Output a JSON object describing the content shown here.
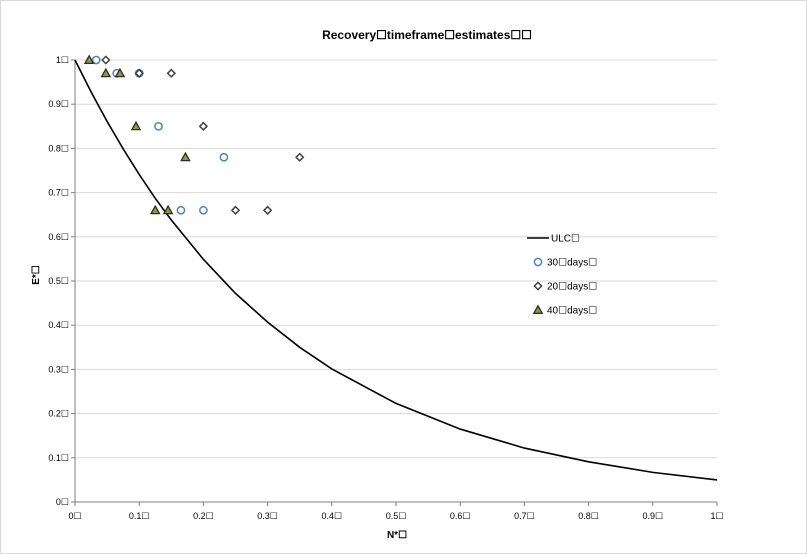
{
  "chart_data": {
    "type": "scatter",
    "title": "Recovery☐timeframe☐estimates☐☐",
    "xlabel": "N*☐",
    "ylabel": "E*☐",
    "xlim": [
      0,
      1
    ],
    "ylim": [
      0,
      1
    ],
    "grid": "horizontal",
    "legend_position": "right",
    "x_ticks": [
      "0☐",
      "0.1☐",
      "0.2☐",
      "0.3☐",
      "0.4☐",
      "0.5☐",
      "0.6☐",
      "0.7☐",
      "0.8☐",
      "0.9☐",
      "1☐"
    ],
    "y_ticks": [
      "0☐",
      "0.1☐",
      "0.2☐",
      "0.3☐",
      "0.4☐",
      "0.5☐",
      "0.6☐",
      "0.7☐",
      "0.8☐",
      "0.9☐",
      "1☐"
    ],
    "series": [
      {
        "name": "ULC☐",
        "kind": "line",
        "color": "#000000",
        "x": [
          0,
          0.025,
          0.05,
          0.075,
          0.1,
          0.125,
          0.15,
          0.2,
          0.25,
          0.3,
          0.35,
          0.4,
          0.5,
          0.6,
          0.7,
          0.8,
          0.9,
          1.0
        ],
        "y": [
          1.0,
          0.928,
          0.861,
          0.799,
          0.741,
          0.687,
          0.638,
          0.549,
          0.472,
          0.407,
          0.35,
          0.301,
          0.223,
          0.165,
          0.122,
          0.091,
          0.067,
          0.05
        ]
      },
      {
        "name": "30☐days☐",
        "kind": "marker",
        "marker": "circle",
        "color": "#4f81bd",
        "x": [
          0.033,
          0.065,
          0.1,
          0.13,
          0.165,
          0.2,
          0.232
        ],
        "y": [
          1.0,
          0.97,
          0.97,
          0.85,
          0.66,
          0.66,
          0.78
        ]
      },
      {
        "name": "20☐days☐",
        "kind": "marker",
        "marker": "diamond",
        "color": "#404040",
        "x": [
          0.048,
          0.1,
          0.15,
          0.2,
          0.25,
          0.3,
          0.35
        ],
        "y": [
          1.0,
          0.97,
          0.97,
          0.85,
          0.66,
          0.66,
          0.78
        ]
      },
      {
        "name": "40☐days☐",
        "kind": "marker",
        "marker": "triangle",
        "color": "#2b2b2b",
        "fill": "#8b9a3c",
        "x": [
          0.022,
          0.048,
          0.07,
          0.095,
          0.125,
          0.145,
          0.172
        ],
        "y": [
          1.0,
          0.97,
          0.97,
          0.85,
          0.66,
          0.66,
          0.78
        ]
      }
    ]
  }
}
